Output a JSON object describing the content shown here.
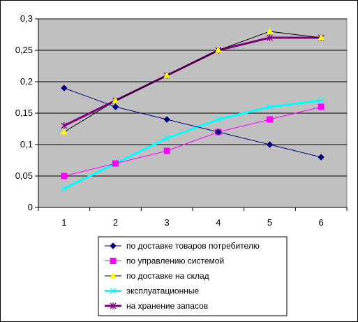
{
  "chart_data": {
    "type": "line",
    "title": "",
    "xlabel": "",
    "ylabel": "",
    "categories": [
      "1",
      "2",
      "3",
      "4",
      "5",
      "6"
    ],
    "ylim": [
      0,
      0.3
    ],
    "y_ticks": [
      "0",
      "0,05",
      "0,1",
      "0,15",
      "0,2",
      "0,25",
      "0,3"
    ],
    "grid": true,
    "legend_position": "bottom",
    "plot_background": "#c0c0c0",
    "series": [
      {
        "name": "по доставке товаров потребителю",
        "color": "#000080",
        "marker": "diamond",
        "values": [
          0.19,
          0.16,
          0.14,
          0.12,
          0.1,
          0.08
        ]
      },
      {
        "name": "по управлению системой",
        "color": "#ff00ff",
        "marker": "square",
        "values": [
          0.05,
          0.07,
          0.09,
          0.12,
          0.14,
          0.16
        ]
      },
      {
        "name": "по доставке на склад",
        "color": "#ffff00",
        "line_color": "#000000",
        "marker": "triangle",
        "values": [
          0.12,
          0.17,
          0.21,
          0.25,
          0.28,
          0.27
        ]
      },
      {
        "name": "эксплуатационные",
        "color": "#00ffff",
        "marker": "x",
        "values": [
          0.03,
          0.07,
          0.11,
          0.14,
          0.16,
          0.17
        ]
      },
      {
        "name": "на хранение запасов",
        "color": "#800080",
        "marker": "star",
        "values": [
          0.13,
          0.17,
          0.21,
          0.25,
          0.27,
          0.27
        ]
      }
    ]
  }
}
